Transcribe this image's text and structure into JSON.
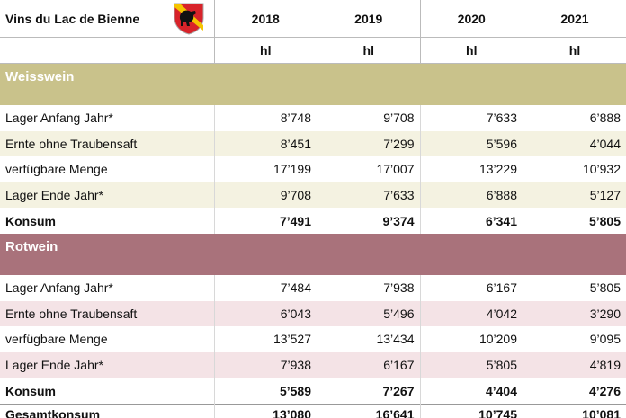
{
  "header": {
    "title": "Vins du Lac de Bienne",
    "years": [
      "2018",
      "2019",
      "2020",
      "2021"
    ],
    "units": [
      "hl",
      "hl",
      "hl",
      "hl"
    ]
  },
  "sections": [
    {
      "name": "Weisswein",
      "rows": [
        {
          "label": "Lager Anfang Jahr*",
          "values": [
            "8’748",
            "9’708",
            "7’633",
            "6’888"
          ]
        },
        {
          "label": "Ernte ohne Traubensaft",
          "values": [
            "8’451",
            "7’299",
            "5’596",
            "4’044"
          ]
        },
        {
          "label": "verfügbare Menge",
          "values": [
            "17’199",
            "17’007",
            "13’229",
            "10’932"
          ]
        },
        {
          "label": "Lager Ende Jahr*",
          "values": [
            "9’708",
            "7’633",
            "6’888",
            "5’127"
          ]
        },
        {
          "label": "Konsum",
          "values": [
            "7’491",
            "9’374",
            "6’341",
            "5’805"
          ]
        }
      ]
    },
    {
      "name": "Rotwein",
      "rows": [
        {
          "label": "Lager Anfang Jahr*",
          "values": [
            "7’484",
            "7’938",
            "6’167",
            "5’805"
          ]
        },
        {
          "label": "Ernte ohne Traubensaft",
          "values": [
            "6’043",
            "5’496",
            "4’042",
            "3’290"
          ]
        },
        {
          "label": "verfügbare Menge",
          "values": [
            "13’527",
            "13’434",
            "10’209",
            "9’095"
          ]
        },
        {
          "label": "Lager Ende Jahr*",
          "values": [
            "7’938",
            "6’167",
            "5’805",
            "4’819"
          ]
        },
        {
          "label": "Konsum",
          "values": [
            "5’589",
            "7’267",
            "4’404",
            "4’276"
          ]
        }
      ]
    }
  ],
  "total": {
    "label": "Gesamtkonsum",
    "values": [
      "13’080",
      "16’641",
      "10’745",
      "10’081"
    ]
  }
}
